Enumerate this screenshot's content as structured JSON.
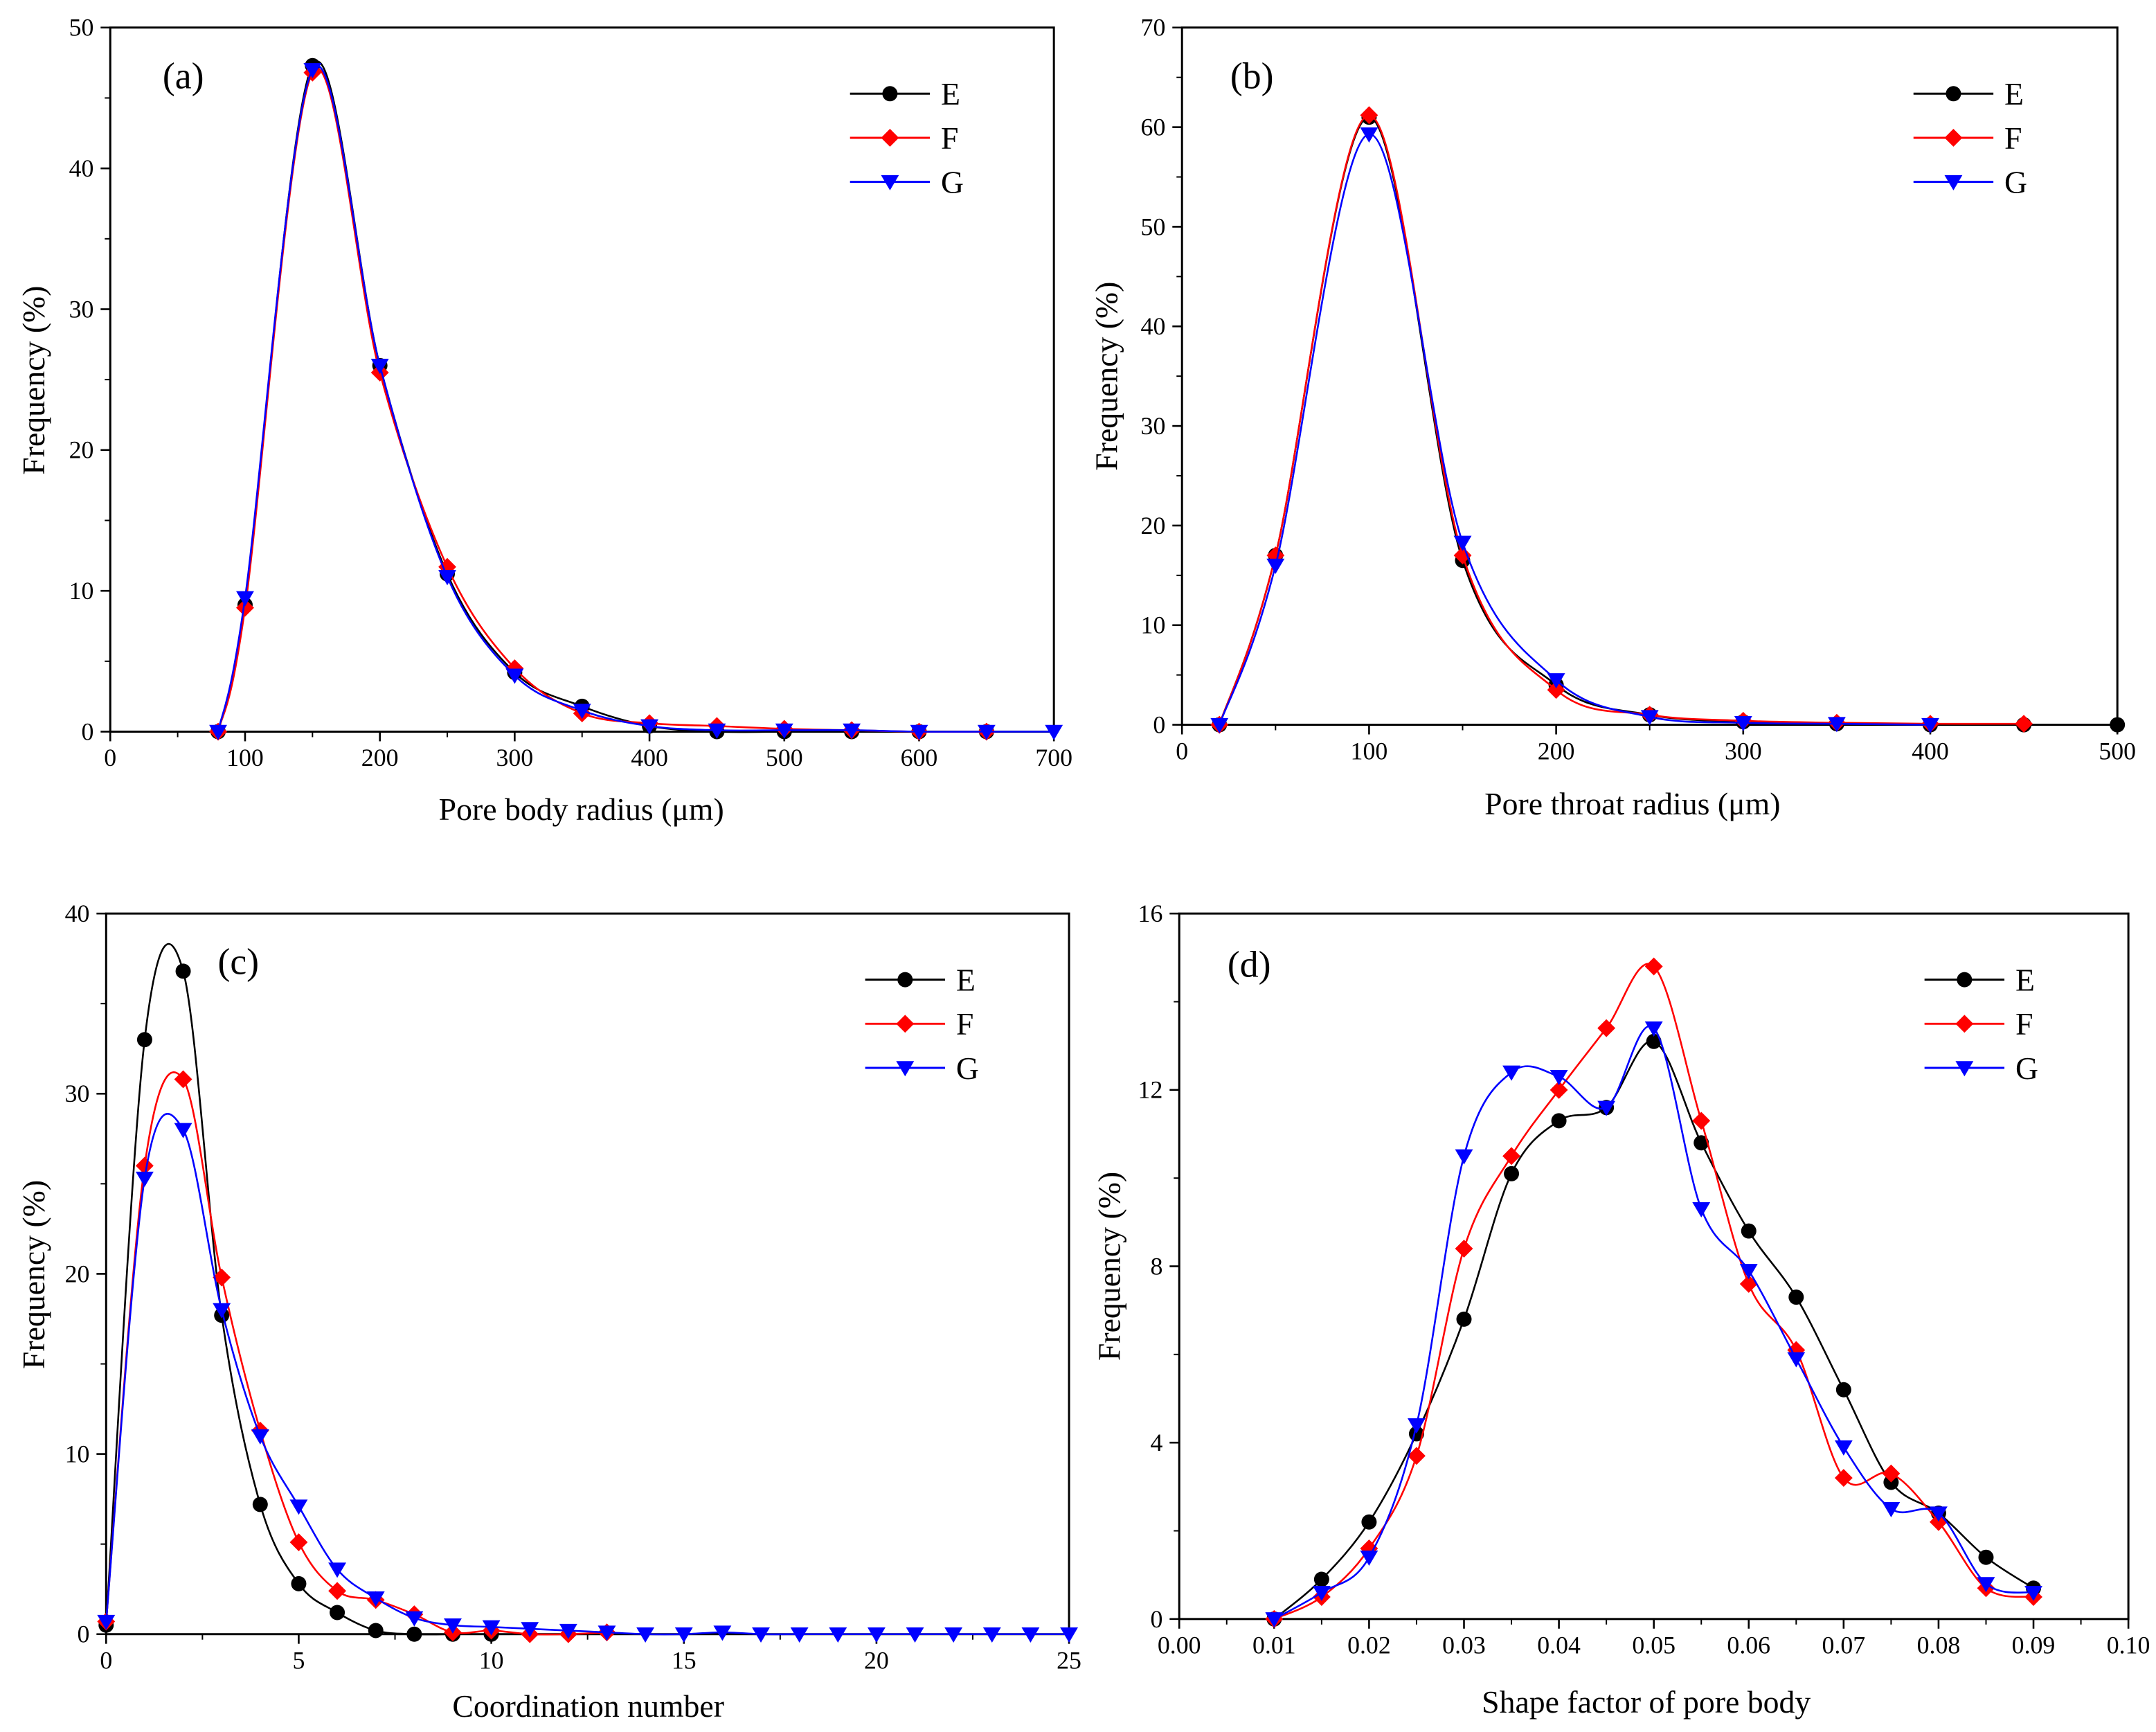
{
  "chart_data": [
    {
      "type": "line",
      "panel_label": "(a)",
      "xlabel": "Pore body radius (μm)",
      "ylabel": "Frequency (%)",
      "xlim": [
        0,
        700
      ],
      "ylim": [
        0,
        50
      ],
      "xticks": [
        0,
        100,
        200,
        300,
        400,
        500,
        600,
        700
      ],
      "xminor": 50,
      "yticks": [
        0,
        10,
        20,
        30,
        40,
        50
      ],
      "yminor": 5,
      "xtick_labels": [
        "0",
        "100",
        "200",
        "300",
        "400",
        "500",
        "600",
        "700"
      ],
      "ytick_labels": [
        "0",
        "10",
        "20",
        "30",
        "40",
        "50"
      ],
      "legend_position": "top-right",
      "series": [
        {
          "name": "E",
          "color": "#000000",
          "marker": "circle",
          "x": [
            80,
            100,
            150,
            200,
            250,
            300,
            350,
            400,
            450,
            500,
            550,
            600,
            650
          ],
          "y": [
            0,
            9,
            47.3,
            26,
            11.2,
            4.2,
            1.8,
            0.4,
            0,
            0,
            0,
            0,
            0
          ]
        },
        {
          "name": "F",
          "color": "#ff0000",
          "marker": "diamond",
          "x": [
            80,
            100,
            150,
            200,
            250,
            300,
            350,
            400,
            450,
            500,
            550,
            600,
            650
          ],
          "y": [
            0,
            8.8,
            46.8,
            25.5,
            11.7,
            4.5,
            1.3,
            0.6,
            0.4,
            0.2,
            0.1,
            0,
            0
          ]
        },
        {
          "name": "G",
          "color": "#0000ff",
          "marker": "triangle-down",
          "x": [
            80,
            100,
            150,
            200,
            250,
            300,
            350,
            400,
            450,
            500,
            550,
            600,
            650,
            700
          ],
          "y": [
            0,
            9.5,
            47,
            26,
            11,
            4,
            1.5,
            0.4,
            0.1,
            0.1,
            0.1,
            0,
            0,
            0
          ]
        }
      ]
    },
    {
      "type": "line",
      "panel_label": "(b)",
      "xlabel": "Pore throat radius (μm)",
      "ylabel": "Frequency (%)",
      "xlim": [
        0,
        500
      ],
      "ylim": [
        0,
        70
      ],
      "xticks": [
        0,
        100,
        200,
        300,
        400,
        500
      ],
      "xminor": 50,
      "yticks": [
        0,
        10,
        20,
        30,
        40,
        50,
        60,
        70
      ],
      "yminor": 5,
      "xtick_labels": [
        "0",
        "100",
        "200",
        "300",
        "400",
        "500"
      ],
      "ytick_labels": [
        "0",
        "10",
        "20",
        "30",
        "40",
        "50",
        "60",
        "70"
      ],
      "legend_position": "top-right",
      "series": [
        {
          "name": "E",
          "color": "#000000",
          "marker": "circle",
          "x": [
            20,
            50,
            100,
            150,
            200,
            250,
            300,
            350,
            400,
            450,
            500
          ],
          "y": [
            0,
            17,
            61,
            16.5,
            4,
            1,
            0.3,
            0.1,
            0,
            0,
            0
          ]
        },
        {
          "name": "F",
          "color": "#ff0000",
          "marker": "diamond",
          "x": [
            20,
            50,
            100,
            150,
            200,
            250,
            300,
            350,
            400,
            450
          ],
          "y": [
            0,
            17,
            61.2,
            17,
            3.5,
            1,
            0.4,
            0.2,
            0.1,
            0.1
          ]
        },
        {
          "name": "G",
          "color": "#0000ff",
          "marker": "triangle-down",
          "x": [
            20,
            50,
            100,
            150,
            200,
            250,
            300,
            350,
            400
          ],
          "y": [
            0,
            16,
            59.3,
            18.3,
            4.5,
            0.8,
            0.2,
            0.1,
            0
          ]
        }
      ]
    },
    {
      "type": "line",
      "panel_label": "(c)",
      "xlabel": "Coordination number",
      "ylabel": "Frequency (%)",
      "xlim": [
        0,
        25
      ],
      "ylim": [
        0,
        40
      ],
      "xticks": [
        0,
        5,
        10,
        15,
        20,
        25
      ],
      "xminor": 2.5,
      "yticks": [
        0,
        10,
        20,
        30,
        40
      ],
      "yminor": 5,
      "xtick_labels": [
        "0",
        "5",
        "10",
        "15",
        "20",
        "25"
      ],
      "ytick_labels": [
        "0",
        "10",
        "20",
        "30",
        "40"
      ],
      "legend_position": "top-right",
      "series": [
        {
          "name": "E",
          "color": "#000000",
          "marker": "circle",
          "x": [
            0,
            1,
            2,
            3,
            4,
            5,
            6,
            7,
            8,
            9,
            10
          ],
          "y": [
            0.5,
            33,
            36.8,
            17.7,
            7.2,
            2.8,
            1.2,
            0.2,
            0,
            0,
            0
          ]
        },
        {
          "name": "F",
          "color": "#ff0000",
          "marker": "diamond",
          "x": [
            0,
            1,
            2,
            3,
            4,
            5,
            6,
            7,
            8,
            9,
            10,
            11,
            12,
            13
          ],
          "y": [
            0.7,
            26,
            30.8,
            19.8,
            11.3,
            5.1,
            2.4,
            1.9,
            1.1,
            0.1,
            0.2,
            0,
            0,
            0.1
          ]
        },
        {
          "name": "G",
          "color": "#0000ff",
          "marker": "triangle-down",
          "x": [
            0,
            1,
            2,
            3,
            4,
            5,
            6,
            7,
            8,
            9,
            10,
            11,
            12,
            13,
            14,
            15,
            16,
            17,
            18,
            19,
            20,
            21,
            22,
            23,
            24,
            25
          ],
          "y": [
            0.7,
            25.3,
            28,
            18,
            11,
            7.1,
            3.6,
            2,
            0.9,
            0.5,
            0.4,
            0.3,
            0.2,
            0.1,
            0,
            0,
            0.1,
            0,
            0,
            0,
            0,
            0,
            0,
            0,
            0,
            0
          ]
        }
      ]
    },
    {
      "type": "line",
      "panel_label": "(d)",
      "xlabel": "Shape factor of pore body",
      "ylabel": "Frequency (%)",
      "xlim": [
        0,
        0.1
      ],
      "ylim": [
        0,
        16
      ],
      "xticks": [
        0,
        0.01,
        0.02,
        0.03,
        0.04,
        0.05,
        0.06,
        0.07,
        0.08,
        0.09,
        0.1
      ],
      "xminor": 0.005,
      "yticks": [
        0,
        4,
        8,
        12,
        16
      ],
      "yminor": 2,
      "xtick_labels": [
        "0.00",
        "0.01",
        "0.02",
        "0.03",
        "0.04",
        "0.05",
        "0.06",
        "0.07",
        "0.08",
        "0.09",
        "0.10"
      ],
      "ytick_labels": [
        "0",
        "4",
        "8",
        "12",
        "16"
      ],
      "legend_position": "top-right",
      "series": [
        {
          "name": "E",
          "color": "#000000",
          "marker": "circle",
          "x": [
            0.01,
            0.015,
            0.02,
            0.025,
            0.03,
            0.035,
            0.04,
            0.045,
            0.05,
            0.055,
            0.06,
            0.065,
            0.07,
            0.075,
            0.08,
            0.085,
            0.09
          ],
          "y": [
            0,
            0.9,
            2.2,
            4.2,
            6.8,
            10.1,
            11.3,
            11.6,
            13.1,
            10.8,
            8.8,
            7.3,
            5.2,
            3.1,
            2.4,
            1.4,
            0.7
          ]
        },
        {
          "name": "F",
          "color": "#ff0000",
          "marker": "diamond",
          "x": [
            0.01,
            0.015,
            0.02,
            0.025,
            0.03,
            0.035,
            0.04,
            0.045,
            0.05,
            0.055,
            0.06,
            0.065,
            0.07,
            0.075,
            0.08,
            0.085,
            0.09
          ],
          "y": [
            0,
            0.5,
            1.6,
            3.7,
            8.4,
            10.5,
            12,
            13.4,
            14.8,
            11.3,
            7.6,
            6.1,
            3.2,
            3.3,
            2.2,
            0.7,
            0.5
          ]
        },
        {
          "name": "G",
          "color": "#0000ff",
          "marker": "triangle-down",
          "x": [
            0.01,
            0.015,
            0.02,
            0.025,
            0.03,
            0.035,
            0.04,
            0.045,
            0.05,
            0.055,
            0.06,
            0.065,
            0.07,
            0.075,
            0.08,
            0.085,
            0.09
          ],
          "y": [
            0,
            0.6,
            1.4,
            4.4,
            10.5,
            12.4,
            12.3,
            11.6,
            13.4,
            9.3,
            7.9,
            5.9,
            3.9,
            2.5,
            2.4,
            0.8,
            0.6
          ]
        }
      ]
    }
  ]
}
